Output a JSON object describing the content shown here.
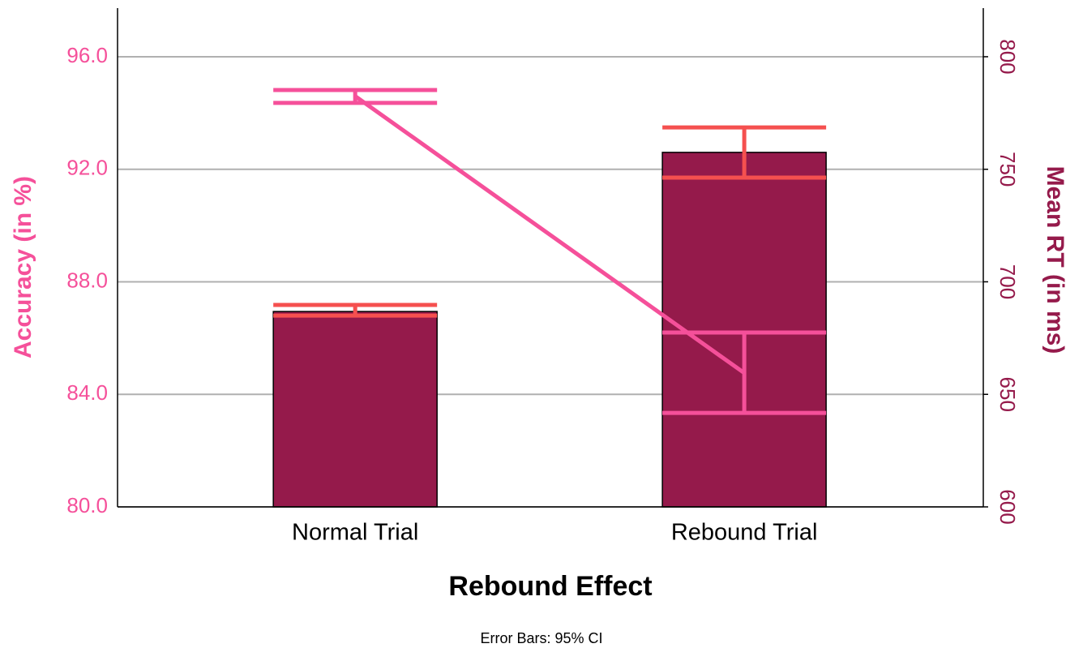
{
  "chart_data": {
    "type": "bar_line",
    "x_label": "Rebound Effect",
    "note": "Error Bars: 95% CI",
    "categories": [
      "Normal Trial",
      "Rebound Trial"
    ],
    "series": [
      {
        "name": "Mean RT (in ms)",
        "type": "bar",
        "axis": "y2",
        "color": "#951a4b",
        "error_color": "#f5504f",
        "values": [
          686.8,
          757.5
        ],
        "ci_low": [
          685,
          746.3
        ],
        "ci_high": [
          689.7,
          768.6
        ]
      },
      {
        "name": "Accuracy (in %)",
        "type": "line",
        "axis": "y",
        "color": "#f5509a",
        "error_color": "#f5509a",
        "values": [
          94.6,
          84.76
        ],
        "ci_low": [
          94.36,
          83.34
        ],
        "ci_high": [
          94.82,
          86.2
        ]
      }
    ],
    "y_label": "Accuracy (in %)",
    "y2_label": "Mean RT (in ms)",
    "y_label_color": "#f5509a",
    "y2_label_color": "#951a4b",
    "ylim": [
      80,
      97.73
    ],
    "yticks": [
      {
        "value": 80,
        "label": "80.0"
      },
      {
        "value": 84,
        "label": "84.0"
      },
      {
        "value": 88,
        "label": "88.0"
      },
      {
        "value": 92,
        "label": "92.0"
      },
      {
        "value": 96,
        "label": "96.0"
      }
    ],
    "y2lim": [
      600,
      821.6
    ],
    "y2ticks": [
      600,
      650,
      700,
      750,
      800
    ],
    "grid": true
  }
}
